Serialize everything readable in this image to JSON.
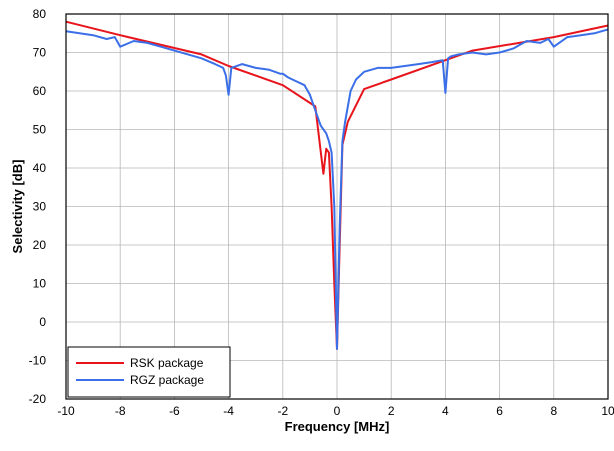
{
  "chart_data": {
    "type": "line",
    "title": "",
    "xlabel": "Frequency [MHz]",
    "ylabel": "Selectivity [dB]",
    "xlim": [
      -10,
      10
    ],
    "ylim": [
      -20,
      80
    ],
    "xticks": [
      -10,
      -8,
      -6,
      -4,
      -2,
      0,
      2,
      4,
      6,
      8,
      10
    ],
    "yticks": [
      -20,
      -10,
      0,
      10,
      20,
      30,
      40,
      50,
      60,
      70,
      80
    ],
    "xtick_labels": [
      "-10",
      "-8",
      "-6",
      "-4",
      "-2",
      "0",
      "2",
      "4",
      "6",
      "8",
      "10"
    ],
    "ytick_labels": [
      "-20",
      "-10",
      "0",
      "10",
      "20",
      "30",
      "40",
      "50",
      "60",
      "70",
      "80"
    ],
    "grid": true,
    "legend_position": "bottom-left",
    "series": [
      {
        "name": "RSK package",
        "color": "#e8141c",
        "x": [
          -10,
          -8,
          -5,
          -4,
          -2,
          -0.8,
          -0.5,
          -0.4,
          -0.3,
          -0.2,
          -0.1,
          0,
          0.1,
          0.2,
          0.4,
          1,
          2,
          4,
          5,
          8,
          10
        ],
        "y": [
          78,
          74.5,
          69.5,
          66.5,
          61.5,
          56,
          38.5,
          45,
          44,
          30,
          10,
          -7,
          20,
          46,
          52,
          60.5,
          63,
          68,
          70.5,
          74,
          77
        ]
      },
      {
        "name": "RGZ package",
        "color": "#3a6fe8",
        "x": [
          -10,
          -9,
          -8.5,
          -8.2,
          -8,
          -7.5,
          -7,
          -6.5,
          -6,
          -5,
          -4.5,
          -4.2,
          -4.1,
          -4,
          -3.9,
          -3.5,
          -3,
          -2.5,
          -2.1,
          -2,
          -1.8,
          -1.5,
          -1.2,
          -1,
          -0.8,
          -0.6,
          -0.4,
          -0.3,
          -0.2,
          -0.1,
          0,
          0.1,
          0.2,
          0.3,
          0.5,
          0.7,
          1,
          1.5,
          2,
          2.5,
          3,
          3.5,
          3.9,
          4,
          4.1,
          4.2,
          4.5,
          5,
          5.5,
          6,
          6.5,
          7,
          7.5,
          7.8,
          8,
          8.5,
          9,
          9.5,
          10
        ],
        "y": [
          75.5,
          74.5,
          73.5,
          74,
          71.5,
          73,
          72.5,
          71.5,
          70.5,
          68.5,
          67,
          66,
          64,
          59,
          66,
          67,
          66,
          65.5,
          64.5,
          64.5,
          63.5,
          62.5,
          61.5,
          59,
          55,
          51,
          49,
          47,
          44,
          30,
          -7,
          25,
          47,
          52,
          60,
          63,
          65,
          66,
          66,
          66.5,
          67,
          67.5,
          68,
          59.5,
          68.5,
          69,
          69.5,
          70,
          69.5,
          70,
          71,
          73,
          72.5,
          73.5,
          71.5,
          74,
          74.5,
          75,
          76
        ]
      }
    ]
  }
}
